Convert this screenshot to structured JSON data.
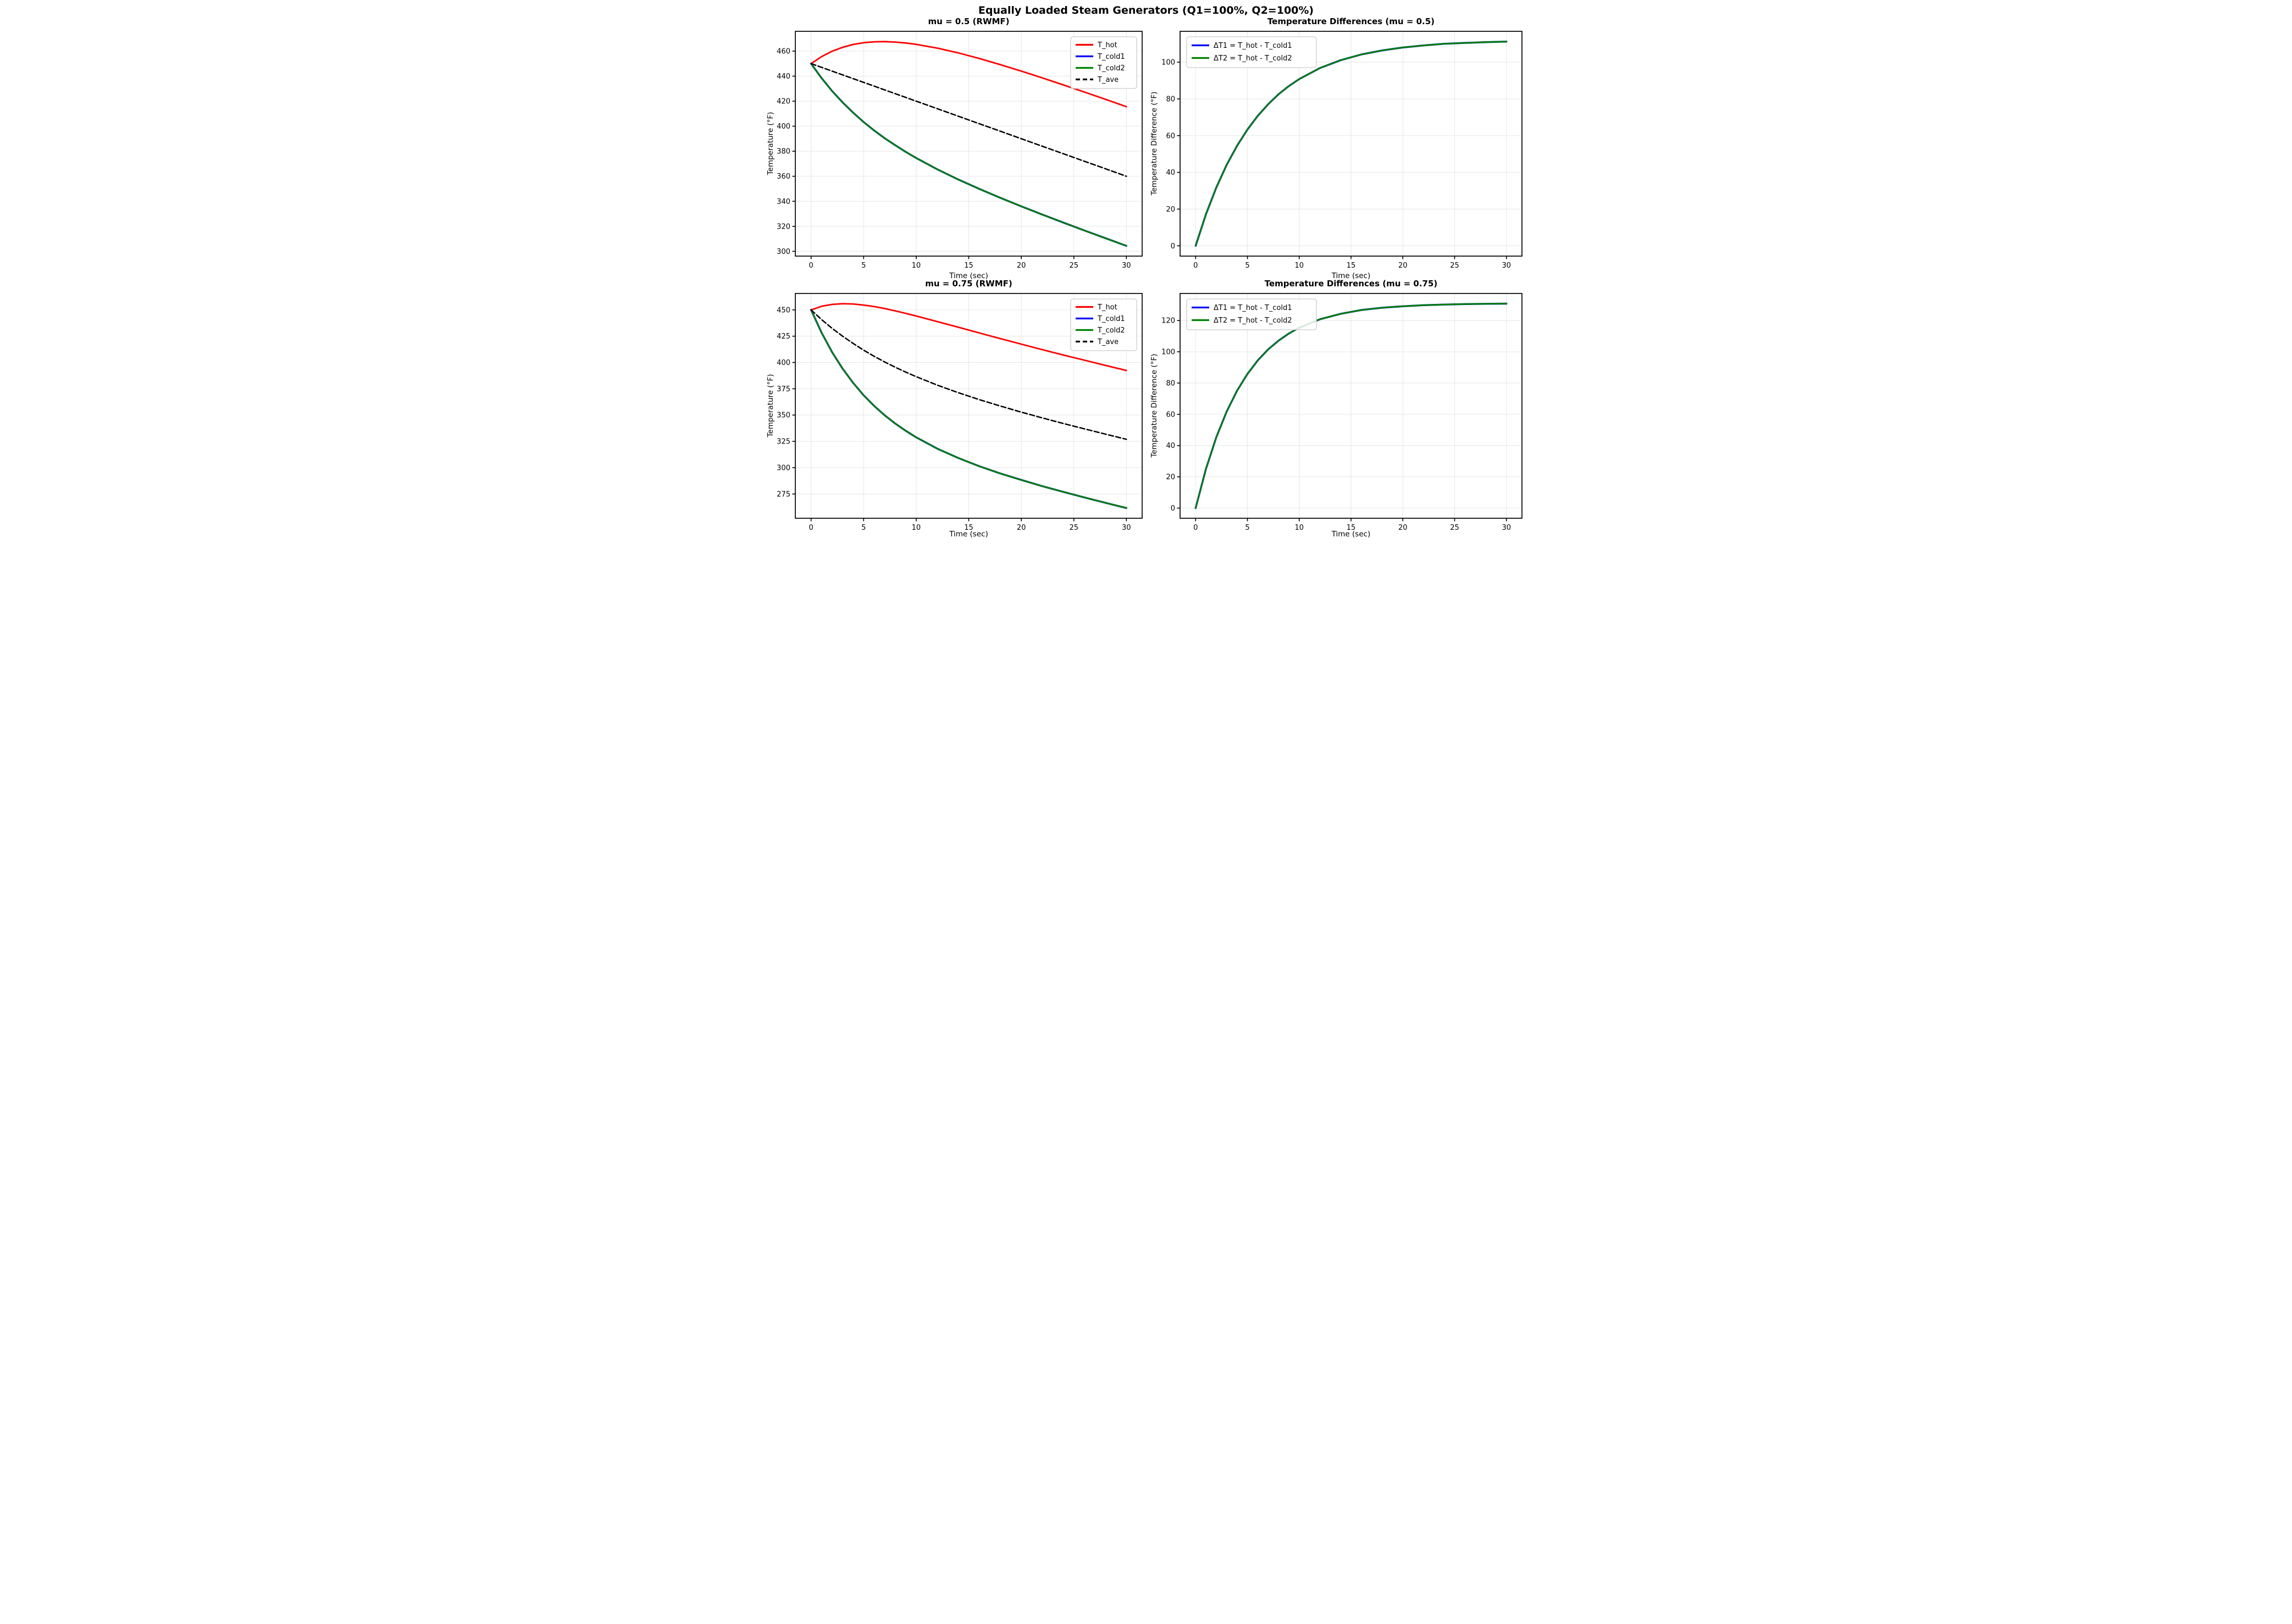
{
  "figure": {
    "suptitle": "Equally Loaded Steam Generators (Q1=100%, Q2=100%)",
    "background": "#ffffff"
  },
  "colors": {
    "t_hot": "#ff0000",
    "t_cold1": "#0000ff",
    "t_cold2": "#008000",
    "t_ave": "#000000",
    "grid": "#e6e6e6",
    "spine": "#000000",
    "legend_border": "#cccccc"
  },
  "chart_data": [
    {
      "id": "mu05-temperatures",
      "type": "line",
      "title": "mu = 0.5 (RWMF)",
      "xlabel": "Time (sec)",
      "ylabel": "Temperature (°F)",
      "xlim": [
        -1.5,
        31.5
      ],
      "ylim": [
        296.2,
        475.8
      ],
      "xticks": [
        0,
        5,
        10,
        15,
        20,
        25,
        30
      ],
      "yticks": [
        300,
        320,
        340,
        360,
        380,
        400,
        420,
        440,
        460
      ],
      "grid": true,
      "legend_position": "upper-right",
      "x": [
        0,
        1,
        2,
        3,
        4,
        5,
        6,
        7,
        8,
        9,
        10,
        12,
        14,
        16,
        18,
        20,
        22,
        24,
        26,
        28,
        30
      ],
      "series": [
        {
          "name": "T_hot",
          "color": "#ff0000",
          "dash": null,
          "width": 2.8,
          "values": [
            450.0,
            455.6,
            459.9,
            463.0,
            465.3,
            466.7,
            467.4,
            467.6,
            467.2,
            466.5,
            465.4,
            462.4,
            458.6,
            454.1,
            449.2,
            444.0,
            438.6,
            433.0,
            427.3,
            421.5,
            415.6
          ]
        },
        {
          "name": "T_cold1",
          "color": "#0000ff",
          "dash": null,
          "width": 3.4,
          "values": [
            450.0,
            438.4,
            428.1,
            419.0,
            410.8,
            403.3,
            396.6,
            390.4,
            384.8,
            379.5,
            374.6,
            365.6,
            357.4,
            349.9,
            342.8,
            336.0,
            329.4,
            323.0,
            316.7,
            310.5,
            304.4
          ]
        },
        {
          "name": "T_cold2",
          "color": "#008000",
          "dash": null,
          "width": 2.8,
          "values": [
            450.0,
            438.4,
            428.1,
            419.0,
            410.8,
            403.3,
            396.6,
            390.4,
            384.8,
            379.5,
            374.6,
            365.6,
            357.4,
            349.9,
            342.8,
            336.0,
            329.4,
            323.0,
            316.7,
            310.5,
            304.4
          ]
        },
        {
          "name": "T_ave",
          "color": "#000000",
          "dash": [
            9,
            4.5
          ],
          "width": 2.5,
          "values": [
            450.0,
            447.0,
            444.0,
            441.0,
            438.0,
            435.0,
            432.0,
            429.0,
            426.0,
            423.0,
            420.0,
            414.0,
            408.0,
            402.0,
            396.0,
            390.0,
            384.0,
            378.0,
            372.0,
            366.0,
            360.0
          ]
        }
      ]
    },
    {
      "id": "mu05-differences",
      "type": "line",
      "title": "Temperature Differences (mu = 0.5)",
      "xlabel": "Time (sec)",
      "ylabel": "Temperature Difference (°F)",
      "xlim": [
        -1.5,
        31.5
      ],
      "ylim": [
        -5.6,
        116.8
      ],
      "xticks": [
        0,
        5,
        10,
        15,
        20,
        25,
        30
      ],
      "yticks": [
        0,
        20,
        40,
        60,
        80,
        100
      ],
      "grid": true,
      "legend_position": "upper-left",
      "x": [
        0,
        1,
        2,
        3,
        4,
        5,
        6,
        7,
        8,
        9,
        10,
        12,
        14,
        16,
        18,
        20,
        22,
        24,
        26,
        28,
        30
      ],
      "series": [
        {
          "name": "ΔT1 = T_hot - T_cold1",
          "color": "#0000ff",
          "dash": null,
          "width": 3.4,
          "values": [
            0.0,
            17.2,
            31.8,
            44.1,
            54.5,
            63.3,
            70.8,
            77.1,
            82.5,
            87.0,
            90.8,
            96.8,
            101.1,
            104.2,
            106.4,
            108.0,
            109.1,
            110.0,
            110.5,
            110.9,
            111.2
          ]
        },
        {
          "name": "ΔT2 = T_hot - T_cold2",
          "color": "#008000",
          "dash": null,
          "width": 2.8,
          "values": [
            0.0,
            17.2,
            31.8,
            44.1,
            54.5,
            63.3,
            70.8,
            77.1,
            82.5,
            87.0,
            90.8,
            96.8,
            101.1,
            104.2,
            106.4,
            108.0,
            109.1,
            110.0,
            110.5,
            110.9,
            111.2
          ]
        }
      ]
    },
    {
      "id": "mu075-temperatures",
      "type": "line",
      "title": "mu = 0.75 (RWMF)",
      "xlabel": "Time (sec)",
      "ylabel": "Temperature (°F)",
      "xlim": [
        -1.5,
        31.5
      ],
      "ylim": [
        251.9,
        465.6
      ],
      "xticks": [
        0,
        5,
        10,
        15,
        20,
        25,
        30
      ],
      "yticks": [
        275,
        300,
        325,
        350,
        375,
        400,
        425,
        450
      ],
      "grid": true,
      "legend_position": "upper-right",
      "x": [
        0,
        1,
        2,
        3,
        4,
        5,
        6,
        7,
        8,
        9,
        10,
        12,
        14,
        16,
        18,
        20,
        22,
        24,
        26,
        28,
        30
      ],
      "series": [
        {
          "name": "T_hot",
          "color": "#ff0000",
          "dash": null,
          "width": 2.8,
          "values": [
            450.0,
            453.4,
            455.2,
            455.9,
            455.6,
            454.6,
            453.2,
            451.3,
            449.1,
            446.7,
            444.2,
            438.9,
            433.5,
            428.1,
            422.7,
            417.4,
            412.2,
            407.1,
            402.2,
            397.2,
            392.4
          ]
        },
        {
          "name": "T_cold1",
          "color": "#0000ff",
          "dash": null,
          "width": 3.4,
          "values": [
            450.0,
            428.3,
            409.8,
            394.1,
            380.6,
            368.8,
            358.7,
            349.8,
            342.0,
            335.1,
            328.8,
            318.1,
            309.2,
            301.4,
            294.5,
            288.3,
            282.4,
            277.0,
            271.7,
            266.6,
            261.6
          ]
        },
        {
          "name": "T_cold2",
          "color": "#008000",
          "dash": null,
          "width": 2.8,
          "values": [
            450.0,
            428.3,
            409.8,
            394.1,
            380.6,
            368.8,
            358.7,
            349.8,
            342.0,
            335.1,
            328.8,
            318.1,
            309.2,
            301.4,
            294.5,
            288.3,
            282.4,
            277.0,
            271.7,
            266.6,
            261.6
          ]
        },
        {
          "name": "T_ave",
          "color": "#000000",
          "dash": [
            9,
            4.5
          ],
          "width": 2.5,
          "values": [
            450.0,
            440.8,
            432.5,
            425.0,
            418.1,
            411.7,
            405.9,
            400.5,
            395.5,
            390.9,
            386.5,
            378.5,
            371.3,
            364.7,
            358.6,
            352.8,
            347.3,
            342.0,
            336.9,
            331.9,
            327.0
          ]
        }
      ]
    },
    {
      "id": "mu075-differences",
      "type": "line",
      "title": "Temperature Differences (mu = 0.75)",
      "xlabel": "Time (sec)",
      "ylabel": "Temperature Difference (°F)",
      "xlim": [
        -1.5,
        31.5
      ],
      "ylim": [
        -6.5,
        137.3
      ],
      "xticks": [
        0,
        5,
        10,
        15,
        20,
        25,
        30
      ],
      "yticks": [
        0,
        20,
        40,
        60,
        80,
        100,
        120
      ],
      "grid": true,
      "legend_position": "upper-left",
      "x": [
        0,
        1,
        2,
        3,
        4,
        5,
        6,
        7,
        8,
        9,
        10,
        12,
        14,
        16,
        18,
        20,
        22,
        24,
        26,
        28,
        30
      ],
      "series": [
        {
          "name": "ΔT1 = T_hot - T_cold1",
          "color": "#0000ff",
          "dash": null,
          "width": 3.4,
          "values": [
            0.0,
            25.1,
            45.4,
            61.8,
            75.1,
            85.8,
            94.5,
            101.5,
            107.1,
            111.7,
            115.4,
            120.8,
            124.3,
            126.7,
            128.2,
            129.1,
            129.8,
            130.2,
            130.5,
            130.7,
            130.8
          ]
        },
        {
          "name": "ΔT2 = T_hot - T_cold2",
          "color": "#008000",
          "dash": null,
          "width": 2.8,
          "values": [
            0.0,
            25.1,
            45.4,
            61.8,
            75.1,
            85.8,
            94.5,
            101.5,
            107.1,
            111.7,
            115.4,
            120.8,
            124.3,
            126.7,
            128.2,
            129.1,
            129.8,
            130.2,
            130.5,
            130.7,
            130.8
          ]
        }
      ]
    }
  ]
}
